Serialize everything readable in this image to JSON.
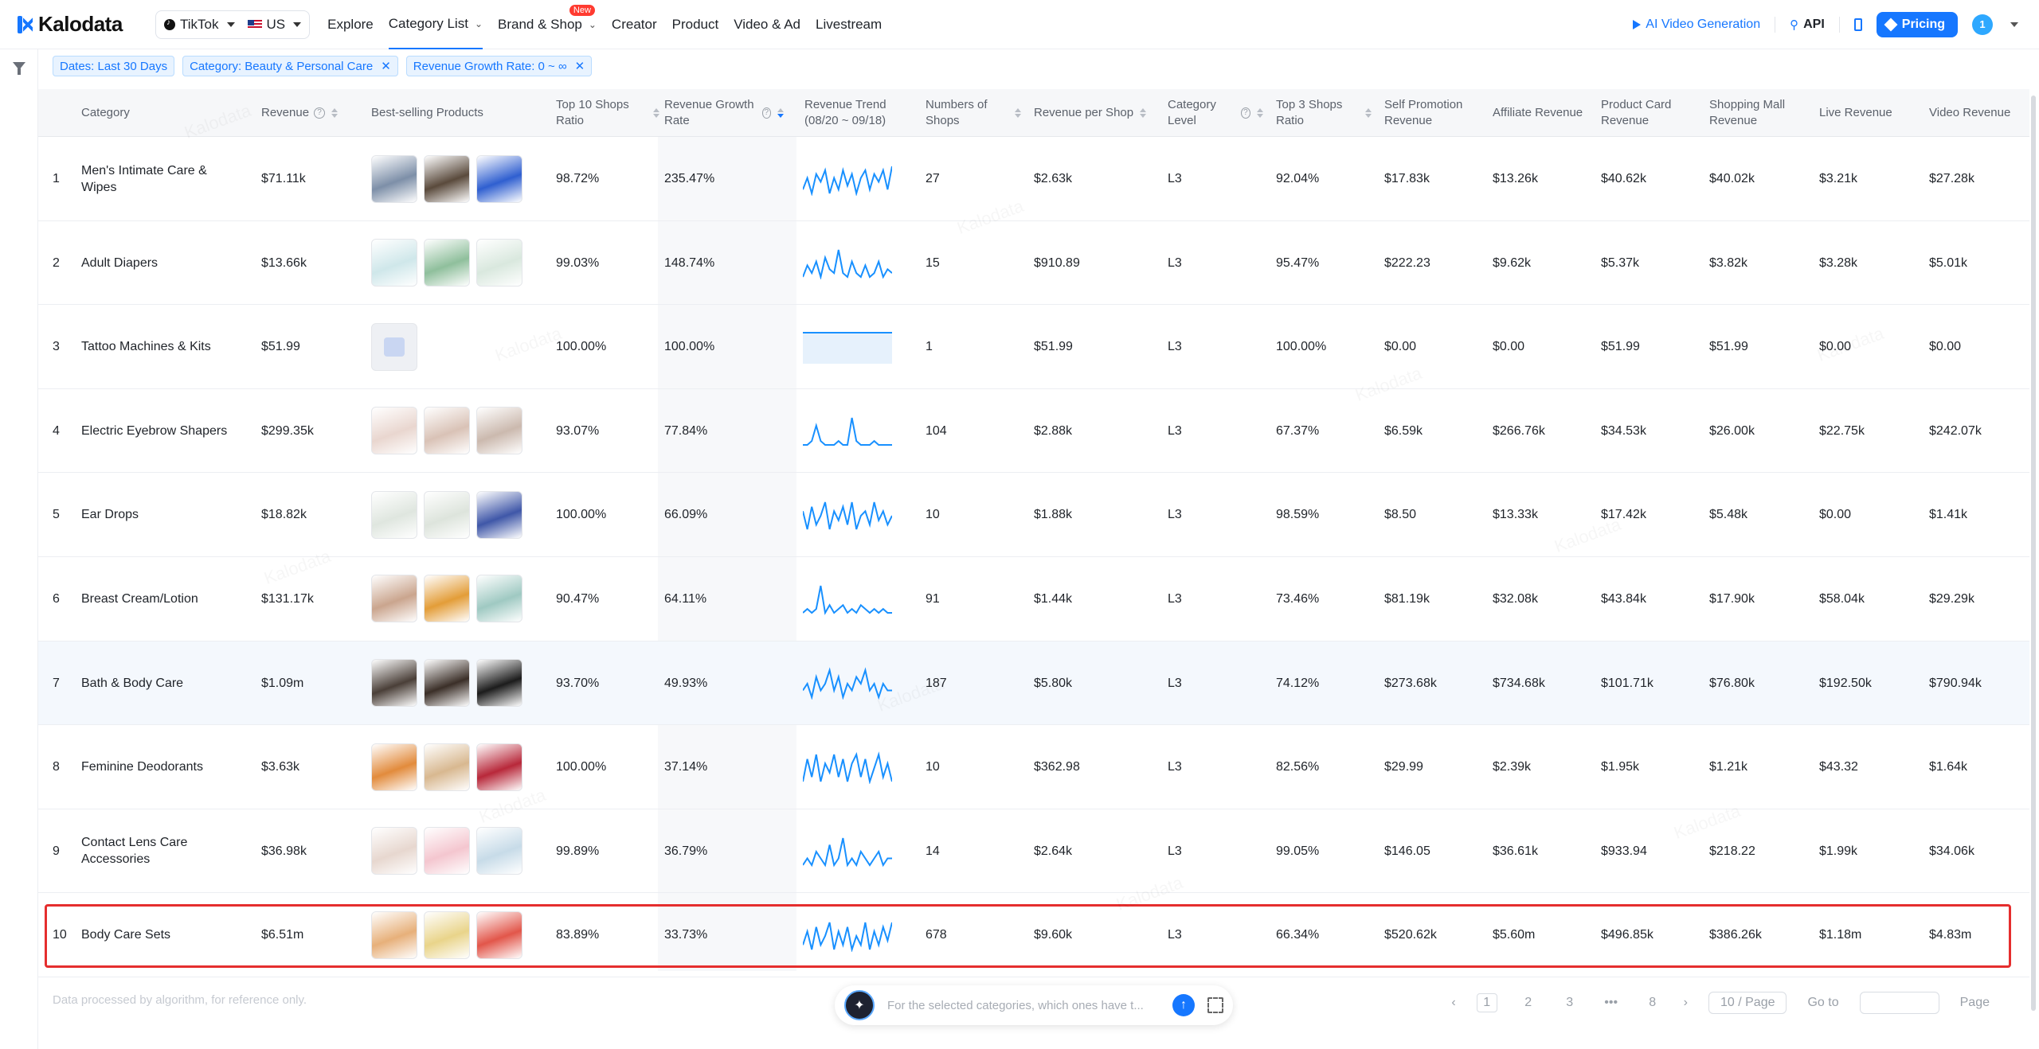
{
  "brand": "Kalodata",
  "platform": {
    "app": "TikTok",
    "region": "US"
  },
  "nav": [
    {
      "label": "Explore",
      "active": false
    },
    {
      "label": "Category List",
      "active": true,
      "dropdown": true
    },
    {
      "label": "Brand & Shop",
      "active": false,
      "dropdown": true,
      "badge": "New"
    },
    {
      "label": "Creator",
      "active": false
    },
    {
      "label": "Product",
      "active": false
    },
    {
      "label": "Video & Ad",
      "active": false
    },
    {
      "label": "Livestream",
      "active": false
    }
  ],
  "header_right": {
    "ai_video": "AI Video Generation",
    "api": "API",
    "pricing": "Pricing",
    "avatar": "1"
  },
  "filters": [
    {
      "label": "Dates: Last 30 Days",
      "closable": false
    },
    {
      "label": "Category: Beauty & Personal Care",
      "closable": true
    },
    {
      "label": "Revenue Growth Rate: 0 ~ ∞",
      "closable": true
    }
  ],
  "columns": [
    {
      "key": "category",
      "label": "Category"
    },
    {
      "key": "revenue",
      "label": "Revenue"
    },
    {
      "key": "products",
      "label": "Best-selling Products"
    },
    {
      "key": "top10",
      "label": "Top 10 Shops Ratio"
    },
    {
      "key": "growth",
      "label": "Revenue Growth Rate"
    },
    {
      "key": "trend",
      "label": "Revenue Trend (08/20 ~ 09/18)"
    },
    {
      "key": "shops",
      "label": "Numbers of Shops"
    },
    {
      "key": "rps",
      "label": "Revenue per Shop"
    },
    {
      "key": "level",
      "label": "Category Level"
    },
    {
      "key": "top3",
      "label": "Top 3 Shops Ratio"
    },
    {
      "key": "selfpromo",
      "label": "Self Promotion Revenue"
    },
    {
      "key": "affiliate",
      "label": "Affiliate Revenue"
    },
    {
      "key": "productcard",
      "label": "Product Card Revenue"
    },
    {
      "key": "mall",
      "label": "Shopping Mall Revenue"
    },
    {
      "key": "live",
      "label": "Live Revenue"
    },
    {
      "key": "video",
      "label": "Video Revenue"
    }
  ],
  "rows": [
    {
      "index": "1",
      "category": "Men's Intimate Care & Wipes",
      "revenue": "$71.11k",
      "top10": "98.72%",
      "growth": "235.47%",
      "shops": "27",
      "rps": "$2.63k",
      "level": "L3",
      "top3": "92.04%",
      "selfpromo": "$17.83k",
      "affiliate": "$13.26k",
      "productcard": "$40.62k",
      "mall": "$40.02k",
      "live": "$3.21k",
      "video": "$27.28k",
      "thumbs": [
        "#7d8fa8",
        "#5a4a3c",
        "#2f5fd0"
      ],
      "trend": [
        3,
        6,
        2,
        7,
        5,
        8,
        2,
        6,
        3,
        8,
        4,
        7,
        2,
        6,
        8,
        3,
        7,
        5,
        8,
        3,
        9
      ],
      "highlight": false,
      "selected": false
    },
    {
      "index": "2",
      "category": "Adult Diapers",
      "revenue": "$13.66k",
      "top10": "99.03%",
      "growth": "148.74%",
      "shops": "15",
      "rps": "$910.89",
      "level": "L3",
      "top3": "95.47%",
      "selfpromo": "$222.23",
      "affiliate": "$9.62k",
      "productcard": "$5.37k",
      "mall": "$3.82k",
      "live": "$3.28k",
      "video": "$5.01k",
      "thumbs": [
        "#cfe7ea",
        "#8fbf9c",
        "#d9e8de"
      ],
      "trend": [
        2,
        5,
        3,
        6,
        2,
        7,
        4,
        3,
        9,
        3,
        2,
        6,
        3,
        2,
        5,
        2,
        3,
        6,
        2,
        4,
        3
      ],
      "highlight": false,
      "selected": false
    },
    {
      "index": "3",
      "category": "Tattoo Machines & Kits",
      "revenue": "$51.99",
      "top10": "100.00%",
      "growth": "100.00%",
      "shops": "1",
      "rps": "$51.99",
      "level": "L3",
      "top3": "100.00%",
      "selfpromo": "$0.00",
      "affiliate": "$0.00",
      "productcard": "$51.99",
      "mall": "$51.99",
      "live": "$0.00",
      "video": "$0.00",
      "thumbs": [
        "bag"
      ],
      "trend": [
        5,
        5,
        5,
        5,
        5,
        5,
        5,
        5,
        5,
        5,
        5,
        5,
        5,
        5,
        5,
        5,
        5,
        5,
        5,
        5,
        5
      ],
      "highlight": false,
      "selected": false
    },
    {
      "index": "4",
      "category": "Electric Eyebrow Shapers",
      "revenue": "$299.35k",
      "top10": "93.07%",
      "growth": "77.84%",
      "shops": "104",
      "rps": "$2.88k",
      "level": "L3",
      "top3": "67.37%",
      "selfpromo": "$6.59k",
      "affiliate": "$266.76k",
      "productcard": "$34.53k",
      "mall": "$26.00k",
      "live": "$22.75k",
      "video": "$242.07k",
      "thumbs": [
        "#e9d6cf",
        "#d9c2b6",
        "#cbb9ae"
      ],
      "trend": [
        1,
        1,
        2,
        6,
        2,
        1,
        1,
        1,
        2,
        1,
        1,
        8,
        2,
        1,
        1,
        1,
        2,
        1,
        1,
        1,
        1
      ],
      "highlight": false,
      "selected": false
    },
    {
      "index": "5",
      "category": "Ear Drops",
      "revenue": "$18.82k",
      "top10": "100.00%",
      "growth": "66.09%",
      "shops": "10",
      "rps": "$1.88k",
      "level": "L3",
      "top3": "98.59%",
      "selfpromo": "$8.50",
      "affiliate": "$13.33k",
      "productcard": "$17.42k",
      "mall": "$5.48k",
      "live": "$0.00",
      "video": "$1.41k",
      "thumbs": [
        "#dfe6df",
        "#dde4dc",
        "#3f57a8"
      ],
      "trend": [
        6,
        2,
        7,
        3,
        5,
        8,
        2,
        6,
        4,
        7,
        3,
        8,
        2,
        5,
        6,
        3,
        8,
        4,
        6,
        3,
        5
      ],
      "highlight": false,
      "selected": false
    },
    {
      "index": "6",
      "category": "Breast Cream/Lotion",
      "revenue": "$131.17k",
      "top10": "90.47%",
      "growth": "64.11%",
      "shops": "91",
      "rps": "$1.44k",
      "level": "L3",
      "top3": "73.46%",
      "selfpromo": "$81.19k",
      "affiliate": "$32.08k",
      "productcard": "$43.84k",
      "mall": "$17.90k",
      "live": "$58.04k",
      "video": "$29.29k",
      "thumbs": [
        "#caa58e",
        "#e39d38",
        "#9fc9c2"
      ],
      "trend": [
        1,
        2,
        1,
        2,
        8,
        1,
        3,
        1,
        2,
        3,
        1,
        2,
        1,
        3,
        2,
        1,
        2,
        1,
        2,
        1,
        1
      ],
      "highlight": false,
      "selected": false
    },
    {
      "index": "7",
      "category": "Bath & Body Care",
      "revenue": "$1.09m",
      "top10": "93.70%",
      "growth": "49.93%",
      "shops": "187",
      "rps": "$5.80k",
      "level": "L3",
      "top3": "74.12%",
      "selfpromo": "$273.68k",
      "affiliate": "$734.68k",
      "productcard": "$101.71k",
      "mall": "$76.80k",
      "live": "$192.50k",
      "video": "$790.94k",
      "thumbs": [
        "#4a3f38",
        "#3b2f28",
        "#1c1c1c"
      ],
      "trend": [
        3,
        4,
        2,
        5,
        3,
        4,
        6,
        3,
        5,
        2,
        4,
        3,
        5,
        4,
        6,
        3,
        4,
        2,
        4,
        3,
        3
      ],
      "highlight": true,
      "selected": false
    },
    {
      "index": "8",
      "category": "Feminine Deodorants",
      "revenue": "$3.63k",
      "top10": "100.00%",
      "growth": "37.14%",
      "shops": "10",
      "rps": "$362.98",
      "level": "L3",
      "top3": "82.56%",
      "selfpromo": "$29.99",
      "affiliate": "$2.39k",
      "productcard": "$1.95k",
      "mall": "$1.21k",
      "live": "$43.32",
      "video": "$1.64k",
      "thumbs": [
        "#e28b3c",
        "#d8b890",
        "#b8283a"
      ],
      "trend": [
        2,
        7,
        3,
        8,
        2,
        6,
        4,
        8,
        3,
        7,
        2,
        6,
        8,
        3,
        7,
        2,
        5,
        8,
        3,
        6,
        2
      ],
      "highlight": false,
      "selected": false
    },
    {
      "index": "9",
      "category": "Contact Lens Care Accessories",
      "revenue": "$36.98k",
      "top10": "99.89%",
      "growth": "36.79%",
      "shops": "14",
      "rps": "$2.64k",
      "level": "L3",
      "top3": "99.05%",
      "selfpromo": "$146.05",
      "affiliate": "$36.61k",
      "productcard": "$933.94",
      "mall": "$218.22",
      "live": "$1.99k",
      "video": "$34.06k",
      "thumbs": [
        "#e7d7cf",
        "#f4c6cf",
        "#c7dbe8"
      ],
      "trend": [
        3,
        4,
        3,
        5,
        4,
        3,
        6,
        3,
        4,
        7,
        3,
        4,
        3,
        5,
        4,
        3,
        4,
        5,
        3,
        4,
        4
      ],
      "highlight": false,
      "selected": false
    },
    {
      "index": "10",
      "category": "Body Care Sets",
      "revenue": "$6.51m",
      "top10": "83.89%",
      "growth": "33.73%",
      "shops": "678",
      "rps": "$9.60k",
      "level": "L3",
      "top3": "66.34%",
      "selfpromo": "$520.62k",
      "affiliate": "$5.60m",
      "productcard": "$496.85k",
      "mall": "$386.26k",
      "live": "$1.18m",
      "video": "$4.83m",
      "thumbs": [
        "#e7b07a",
        "#e9d48a",
        "#e2564a"
      ],
      "trend": [
        3,
        6,
        2,
        7,
        3,
        5,
        8,
        2,
        6,
        3,
        7,
        2,
        5,
        3,
        8,
        2,
        6,
        3,
        7,
        4,
        8
      ],
      "highlight": false,
      "selected": true
    }
  ],
  "footer": {
    "note": "Data processed by algorithm, for reference only.",
    "ai_placeholder": "For the selected categories, which ones have t...",
    "pages": [
      "1",
      "2",
      "3",
      "•••",
      "8"
    ],
    "current_page": "1",
    "per_page": "10 / Page",
    "goto": "Go to",
    "page_suffix": "Page"
  },
  "colors": {
    "accent": "#1677ff",
    "selection_border": "#e52e2e",
    "trend_line": "#1890ff"
  }
}
